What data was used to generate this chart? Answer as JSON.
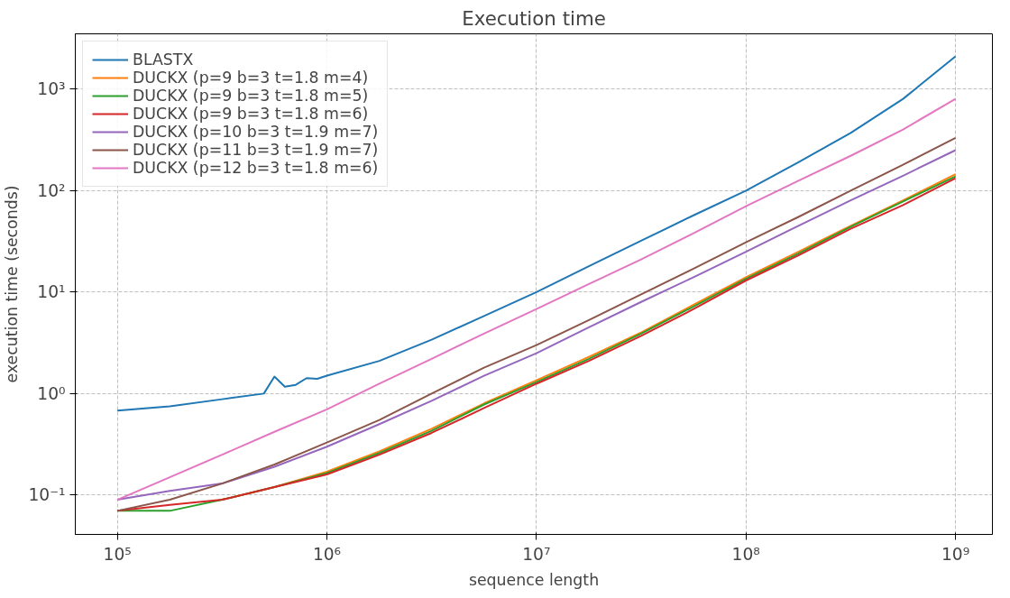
{
  "chart_data": {
    "type": "line",
    "title": "Execution time",
    "xlabel": "sequence length",
    "ylabel": "execution time (seconds)",
    "log": "xy",
    "grid": true,
    "legend": "top left",
    "marker": "none",
    "line_style": "solid",
    "xlim": [
      63000,
      1500000000
    ],
    "ylim": [
      0.041,
      3500
    ],
    "xticks": [
      {
        "value": 100000,
        "label": "10⁵"
      },
      {
        "value": 1000000,
        "label": "10⁶"
      },
      {
        "value": 10000000,
        "label": "10⁷"
      },
      {
        "value": 100000000,
        "label": "10⁸"
      },
      {
        "value": 1000000000,
        "label": "10⁹"
      }
    ],
    "yticks": [
      {
        "value": 0.1,
        "label": "10⁻¹"
      },
      {
        "value": 1,
        "label": "10⁰"
      },
      {
        "value": 10,
        "label": "10¹"
      },
      {
        "value": 100,
        "label": "10²"
      },
      {
        "value": 1000,
        "label": "10³"
      }
    ],
    "x": [
      100000,
      178000,
      316000,
      562000,
      1000000,
      1780000,
      3160000,
      5620000,
      10000000,
      17800000,
      31600000,
      56200000,
      100000000,
      178000000,
      316000000,
      562000000,
      1000000000
    ],
    "series": [
      {
        "name": "BLASTX",
        "color": "#1f77b4",
        "x": [
          100000,
          178000,
          316000,
          500000,
          562000,
          630000,
          710000,
          800000,
          900000,
          1000000,
          1780000,
          3160000,
          5620000,
          10000000,
          17800000,
          31600000,
          56200000,
          100000000,
          178000000,
          316000000,
          562000000,
          1000000000
        ],
        "values": [
          0.68,
          0.75,
          0.88,
          1.0,
          1.47,
          1.17,
          1.22,
          1.42,
          1.4,
          1.5,
          2.1,
          3.4,
          5.8,
          10,
          18,
          32,
          57,
          100,
          190,
          370,
          800,
          2100
        ]
      },
      {
        "name": "DUCKX (p=9 b=3 t=1.8 m=4)",
        "color": "#ff7f0e",
        "values": [
          null,
          null,
          0.09,
          0.12,
          0.17,
          0.27,
          0.45,
          0.8,
          1.35,
          2.3,
          4.0,
          7.5,
          14,
          25,
          45,
          80,
          145
        ]
      },
      {
        "name": "DUCKX (p=9 b=3 t=1.8 m=5)",
        "color": "#2ca02c",
        "values": [
          0.07,
          0.07,
          0.09,
          0.12,
          0.165,
          0.26,
          0.43,
          0.78,
          1.3,
          2.2,
          3.9,
          7.2,
          13.5,
          24,
          44,
          78,
          138
        ]
      },
      {
        "name": "DUCKX (p=9 b=3 t=1.8 m=6)",
        "color": "#d62728",
        "values": [
          0.07,
          0.08,
          0.09,
          0.12,
          0.16,
          0.25,
          0.41,
          0.72,
          1.25,
          2.1,
          3.7,
          6.8,
          13,
          23,
          42,
          72,
          132
        ]
      },
      {
        "name": "DUCKX (p=10 b=3 t=1.9 m=7)",
        "color": "#9467bd",
        "values": [
          0.09,
          0.11,
          0.13,
          0.19,
          0.3,
          0.5,
          0.85,
          1.5,
          2.5,
          4.5,
          8,
          14,
          25,
          45,
          80,
          140,
          250
        ]
      },
      {
        "name": "DUCKX (p=11 b=3 t=1.9 m=7)",
        "color": "#8c564b",
        "values": [
          0.07,
          0.09,
          0.13,
          0.2,
          0.33,
          0.55,
          1.0,
          1.8,
          3.0,
          5.3,
          9.5,
          17,
          31,
          55,
          100,
          180,
          330
        ]
      },
      {
        "name": "DUCKX (p=12 b=3 t=1.8 m=6)",
        "color": "#e377c2",
        "values": [
          0.09,
          0.15,
          0.25,
          0.42,
          0.7,
          1.25,
          2.2,
          3.9,
          6.8,
          12,
          21,
          38,
          70,
          125,
          220,
          400,
          800
        ]
      }
    ]
  }
}
